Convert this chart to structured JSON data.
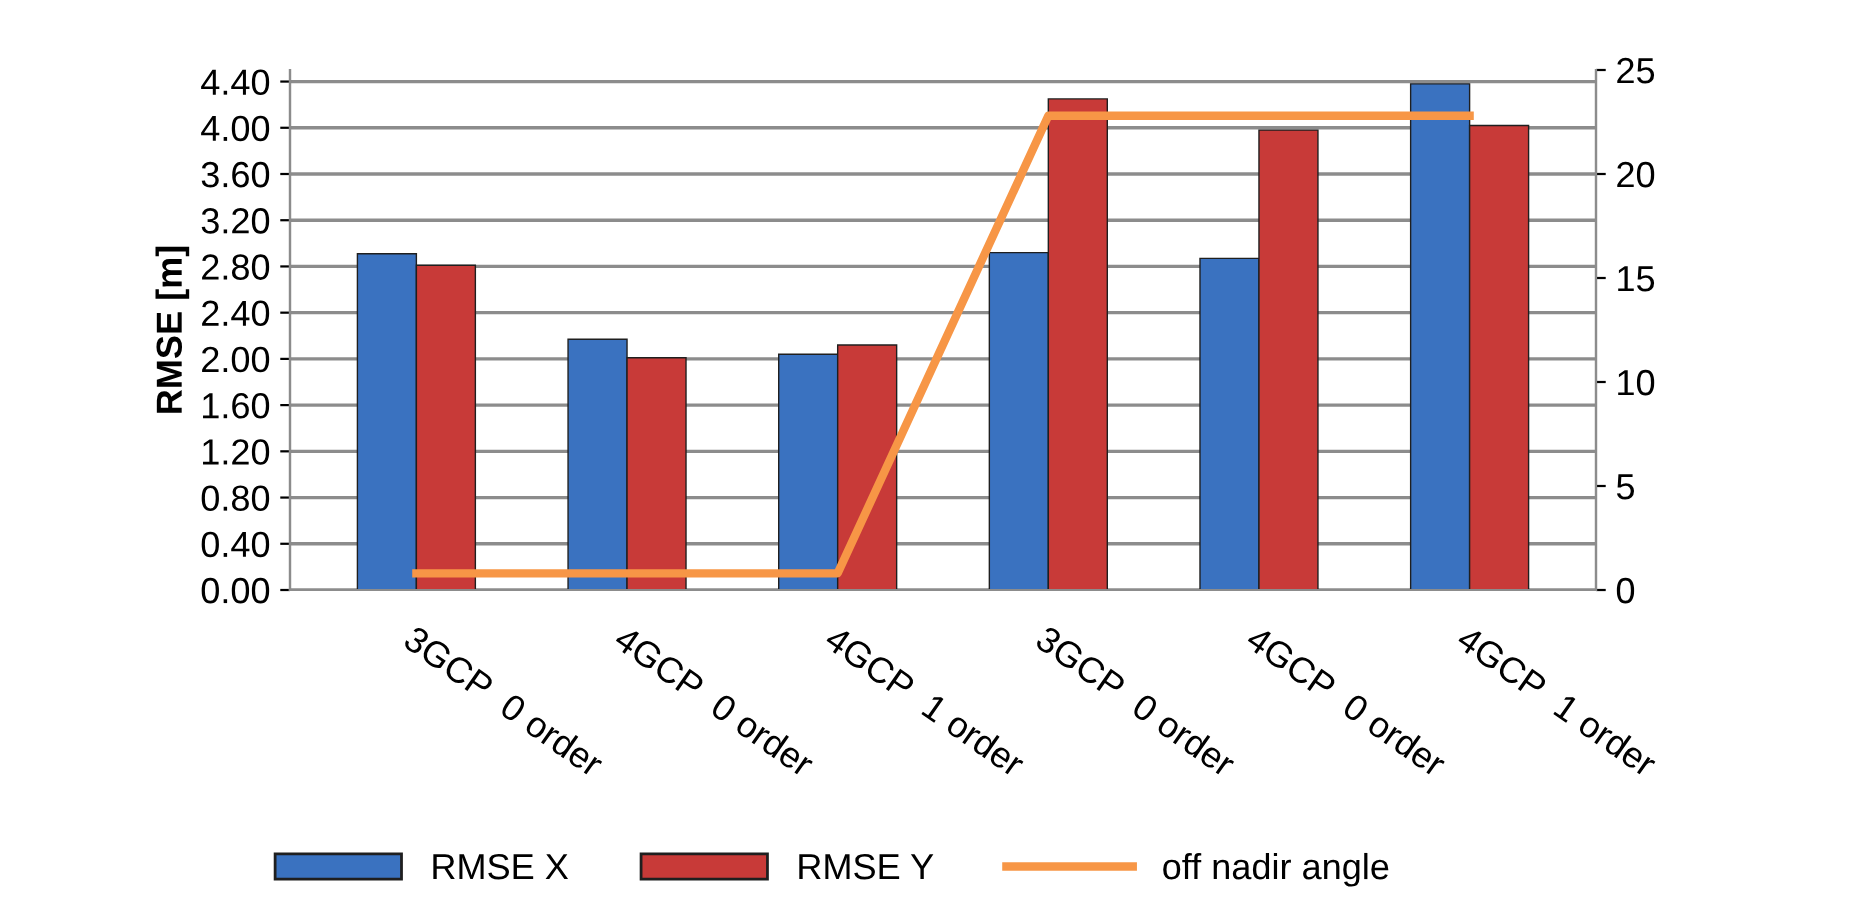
{
  "chart_data": {
    "type": "bar",
    "ylabel": "RMSE [m]",
    "categories": [
      "3GCP  0 order",
      "4GCP  0 order",
      "4GCP  1 order",
      "3GCP  0 order",
      "4GCP  0 order",
      "4GCP  1 order"
    ],
    "series": [
      {
        "name": "RMSE X",
        "color": "#3a72c0",
        "values": [
          2.91,
          2.17,
          2.04,
          2.92,
          2.87,
          4.38
        ]
      },
      {
        "name": "RMSE Y",
        "color": "#c83a38",
        "values": [
          2.81,
          2.01,
          2.12,
          4.25,
          3.98,
          4.02
        ]
      },
      {
        "name": "off nadir angle",
        "type": "line",
        "axis": "y2",
        "color": "#f79646",
        "values": [
          0.8,
          0.8,
          0.8,
          22.8,
          22.8,
          22.8
        ]
      }
    ],
    "ylim": [
      0,
      4.5
    ],
    "yticks": [
      {
        "value": 0,
        "label": "0.00"
      },
      {
        "value": 0.4,
        "label": "0.40"
      },
      {
        "value": 0.8,
        "label": "0.80"
      },
      {
        "value": 1.2,
        "label": "1.20"
      },
      {
        "value": 1.6,
        "label": "1.60"
      },
      {
        "value": 2,
        "label": "2.00"
      },
      {
        "value": 2.4,
        "label": "2.40"
      },
      {
        "value": 2.8,
        "label": "2.80"
      },
      {
        "value": 3.2,
        "label": "3.20"
      },
      {
        "value": 3.6,
        "label": "3.60"
      },
      {
        "value": 4,
        "label": "4.00"
      },
      {
        "value": 4.4,
        "label": "4.40"
      }
    ],
    "y2lim": [
      0,
      25
    ],
    "y2ticks": [
      0,
      5,
      10,
      15,
      20,
      25
    ],
    "grid": "y",
    "legend": "bottom"
  }
}
